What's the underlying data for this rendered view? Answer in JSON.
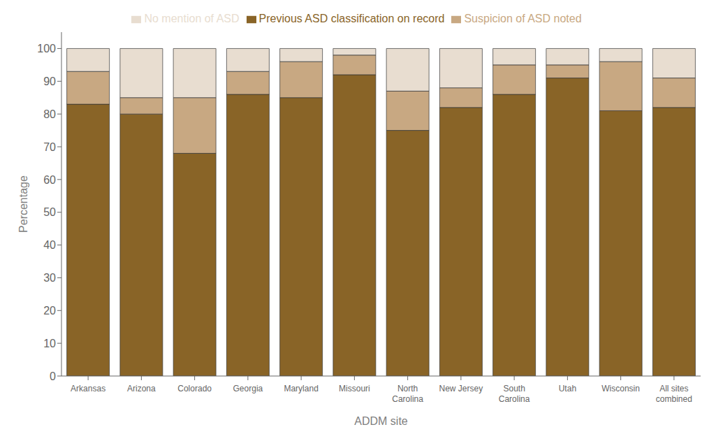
{
  "chart_data": {
    "type": "bar",
    "stacked": true,
    "categories": [
      "Arkansas",
      "Arizona",
      "Colorado",
      "Georgia",
      "Maryland",
      "Missouri",
      "North\nCarolina",
      "New Jersey",
      "South\nCarolina",
      "Utah",
      "Wisconsin",
      "All sites\ncombined"
    ],
    "series": [
      {
        "name": "Previous ASD classification on record",
        "color": "#896427",
        "values": [
          83,
          80,
          68,
          86,
          85,
          92,
          75,
          82,
          86,
          91,
          81,
          82
        ]
      },
      {
        "name": "Suspicion of ASD noted",
        "color": "#C8A882",
        "values": [
          10,
          5,
          17,
          7,
          11,
          6,
          12,
          6,
          9,
          4,
          15,
          9
        ]
      },
      {
        "name": "No mention of ASD",
        "color": "#E8DDD0",
        "values": [
          7,
          15,
          15,
          7,
          4,
          2,
          13,
          12,
          5,
          5,
          4,
          9
        ]
      }
    ],
    "xlabel": "ADDM site",
    "ylabel": "Percentage",
    "ylim": [
      0,
      105
    ],
    "yticks": [
      0,
      10,
      20,
      30,
      40,
      50,
      60,
      70,
      80,
      90,
      100
    ],
    "grid": false,
    "legend": "top"
  }
}
